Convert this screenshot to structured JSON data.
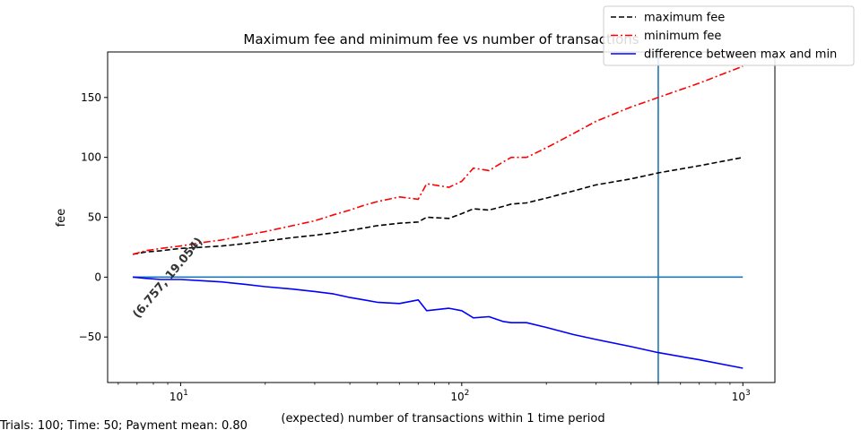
{
  "chart_data": {
    "type": "line",
    "title": "Maximum fee and minimum fee vs number of transactions",
    "xlabel": "(expected) number of transactions within 1 time period",
    "ylabel": "fee",
    "xscale": "log",
    "xlim": [
      5.5,
      1300
    ],
    "ylim": [
      -88,
      188
    ],
    "yticks": [
      -50,
      0,
      50,
      100,
      150
    ],
    "ytick_labels": [
      "−50",
      "0",
      "50",
      "100",
      "150"
    ],
    "xticks": [
      10,
      100,
      1000
    ],
    "xtick_labels": [
      {
        "base": "10",
        "exp": "1"
      },
      {
        "base": "10",
        "exp": "2"
      },
      {
        "base": "10",
        "exp": "3"
      }
    ],
    "legend_position": "top-right",
    "series": [
      {
        "name": "maximum fee",
        "color": "#000000",
        "style": "dashed",
        "x": [
          6.757,
          7.5,
          8.5,
          10,
          12,
          14,
          17,
          20,
          25,
          30,
          35,
          40,
          45,
          50,
          60,
          70,
          75,
          90,
          100,
          110,
          125,
          140,
          150,
          170,
          200,
          250,
          300,
          400,
          500,
          700,
          1000
        ],
        "y": [
          19.05,
          21,
          22,
          24,
          25,
          26,
          28,
          30,
          33,
          35,
          37,
          39,
          41,
          43,
          45,
          46,
          50,
          49,
          53,
          57,
          56,
          59,
          61,
          62,
          66,
          72,
          77,
          82,
          87,
          93,
          100
        ]
      },
      {
        "name": "minimum fee",
        "color": "#ff0000",
        "style": "dashdot",
        "x": [
          6.757,
          7.5,
          8.5,
          10,
          12,
          14,
          17,
          20,
          25,
          30,
          35,
          40,
          45,
          50,
          60,
          70,
          75,
          90,
          100,
          110,
          125,
          140,
          150,
          170,
          200,
          250,
          300,
          400,
          500,
          700,
          1000
        ],
        "y": [
          19.05,
          22,
          24,
          26,
          29,
          31,
          35,
          38,
          43,
          47,
          52,
          56,
          60,
          63,
          67,
          65,
          78,
          75,
          80,
          91,
          89,
          96,
          100,
          100,
          108,
          120,
          130,
          142,
          150,
          162,
          176
        ]
      },
      {
        "name": "difference between max and min",
        "color": "#0000ff",
        "style": "solid",
        "x": [
          6.757,
          7.5,
          8.5,
          10,
          12,
          14,
          17,
          20,
          25,
          30,
          35,
          40,
          45,
          50,
          60,
          70,
          75,
          90,
          100,
          110,
          125,
          140,
          150,
          170,
          200,
          250,
          300,
          400,
          500,
          700,
          1000
        ],
        "y": [
          0,
          -1,
          -2,
          -2,
          -3,
          -4,
          -6,
          -8,
          -10,
          -12,
          -14,
          -17,
          -19,
          -21,
          -22,
          -19,
          -28,
          -26,
          -28,
          -34,
          -33,
          -37,
          -38,
          -38,
          -42,
          -48,
          -52,
          -58,
          -63,
          -69,
          -76
        ]
      }
    ],
    "reference_lines": [
      {
        "orientation": "horizontal",
        "value": 0,
        "from_x": 6.757,
        "to_x": 1000,
        "color": "#1f77b4"
      },
      {
        "orientation": "vertical",
        "value": 500,
        "color": "#1f77b4"
      }
    ],
    "annotation": {
      "text": "(6.757, 19.054)",
      "x": 6.757,
      "y": 19.054,
      "rotation_deg": -50
    }
  },
  "footer": {
    "text": "Trials: 100; Time: 50; Payment mean: 0.80"
  }
}
